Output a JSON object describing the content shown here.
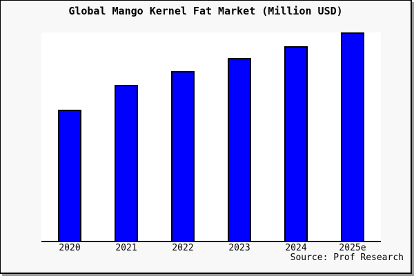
{
  "chart_data": {
    "type": "bar",
    "title": "Global Mango Kernel Fat Market (Million USD)",
    "categories": [
      "2020",
      "2021",
      "2022",
      "2023",
      "2024",
      "2025e"
    ],
    "values": [
      190,
      226,
      246,
      265,
      282,
      302
    ],
    "values_note": "no y-axis scale is rendered in the image; values are relative units estimated from bar pixel heights",
    "xlabel": "",
    "ylabel": "",
    "ylim": [
      0,
      302
    ],
    "grid": false,
    "legend": false,
    "source": "Source: Prof Research",
    "bar_color": "#0000ff",
    "bar_border_color": "#000000",
    "axis_color": "#000000",
    "background_color": "#f8f8f8",
    "plot_background_color": "#ffffff"
  }
}
